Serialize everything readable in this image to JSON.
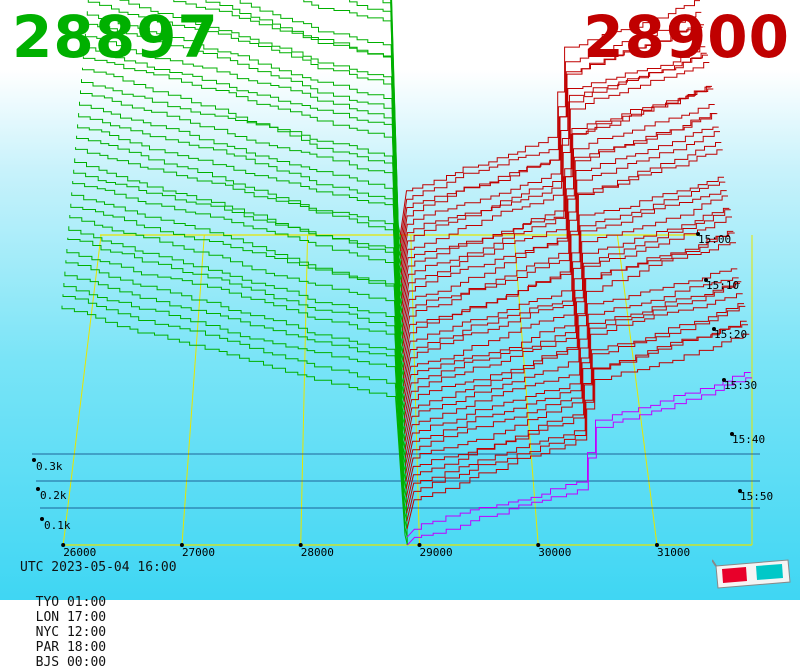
{
  "header": {
    "bid_price": "28897",
    "ask_price": "28900",
    "bid_color": "#00b000",
    "ask_color": "#c00000"
  },
  "footer": {
    "utc": "UTC 2023-05-04 16:00",
    "zones": [
      {
        "label": "TYO 01:00"
      },
      {
        "label": "LON 17:00"
      },
      {
        "label": "NYC 12:00"
      },
      {
        "label": "PAR 18:00"
      },
      {
        "label": "BJS 00:00"
      }
    ]
  },
  "icons": {
    "glasses": "3d-glasses-icon"
  },
  "chart_data": {
    "type": "area",
    "title": "",
    "x_axis": {
      "labels": [
        "26000",
        "27000",
        "28000",
        "29000",
        "30000",
        "31000"
      ],
      "values": [
        26000,
        27000,
        28000,
        29000,
        30000,
        31000
      ]
    },
    "depth_axis": {
      "labels": [
        "0.1k",
        "0.2k",
        "0.3k"
      ],
      "values": [
        100,
        200,
        300
      ]
    },
    "time_axis": {
      "labels": [
        "15:00",
        "15:10",
        "15:20",
        "15:30",
        "15:40",
        "15:50"
      ]
    },
    "mid_price": 28898,
    "series": [
      {
        "name": "",
        "side": "bid",
        "color": "#00b000",
        "depth_at_26000": 360,
        "depth_near_mid": 330
      },
      {
        "name": "",
        "side": "ask",
        "color": "#c00000",
        "depth_near_mid": 170,
        "depth_at_31500": 390
      }
    ],
    "grid_color": "#e6e600"
  }
}
